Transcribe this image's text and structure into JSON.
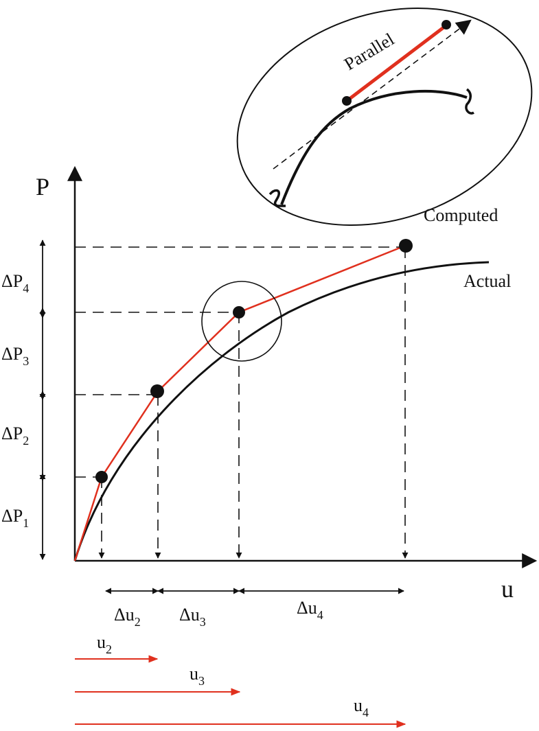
{
  "axes": {
    "y_label": "P",
    "x_label": "u"
  },
  "curves": {
    "computed_label": "Computed",
    "actual_label": "Actual",
    "parallel_label": "Parallel"
  },
  "load_increments": [
    {
      "symbol": "ΔP",
      "index": "4"
    },
    {
      "symbol": "ΔP",
      "index": "3"
    },
    {
      "symbol": "ΔP",
      "index": "2"
    },
    {
      "symbol": "ΔP",
      "index": "1"
    }
  ],
  "displacement_increments": [
    {
      "symbol": "Δu",
      "index": "2"
    },
    {
      "symbol": "Δu",
      "index": "3"
    },
    {
      "symbol": "Δu",
      "index": "4"
    }
  ],
  "displacements": [
    {
      "symbol": "u",
      "index": "2"
    },
    {
      "symbol": "u",
      "index": "3"
    },
    {
      "symbol": "u",
      "index": "4"
    }
  ],
  "colors": {
    "computed": "#e0301e",
    "actual": "#111111",
    "ink": "#111111"
  }
}
